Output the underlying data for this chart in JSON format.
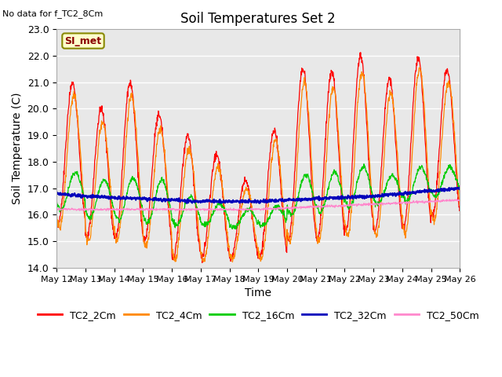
{
  "title": "Soil Temperatures Set 2",
  "xlabel": "Time",
  "ylabel": "Soil Temperature (C)",
  "note": "No data for f_TC2_8Cm",
  "legend_label": "SI_met",
  "ylim": [
    14.0,
    23.0
  ],
  "yticks": [
    14.0,
    15.0,
    16.0,
    17.0,
    18.0,
    19.0,
    20.0,
    21.0,
    22.0,
    23.0
  ],
  "series_colors": {
    "TC2_2Cm": "#ff0000",
    "TC2_4Cm": "#ff8800",
    "TC2_16Cm": "#00cc00",
    "TC2_32Cm": "#0000bb",
    "TC2_50Cm": "#ff88cc"
  },
  "fig_bg": "#ffffff",
  "axes_bg": "#e8e8e8",
  "days": [
    "May 12",
    "May 13",
    "May 14",
    "May 15",
    "May 16",
    "May 17",
    "May 18",
    "May 19",
    "May 20",
    "May 21",
    "May 22",
    "May 23",
    "May 24",
    "May 25",
    "May 26"
  ]
}
